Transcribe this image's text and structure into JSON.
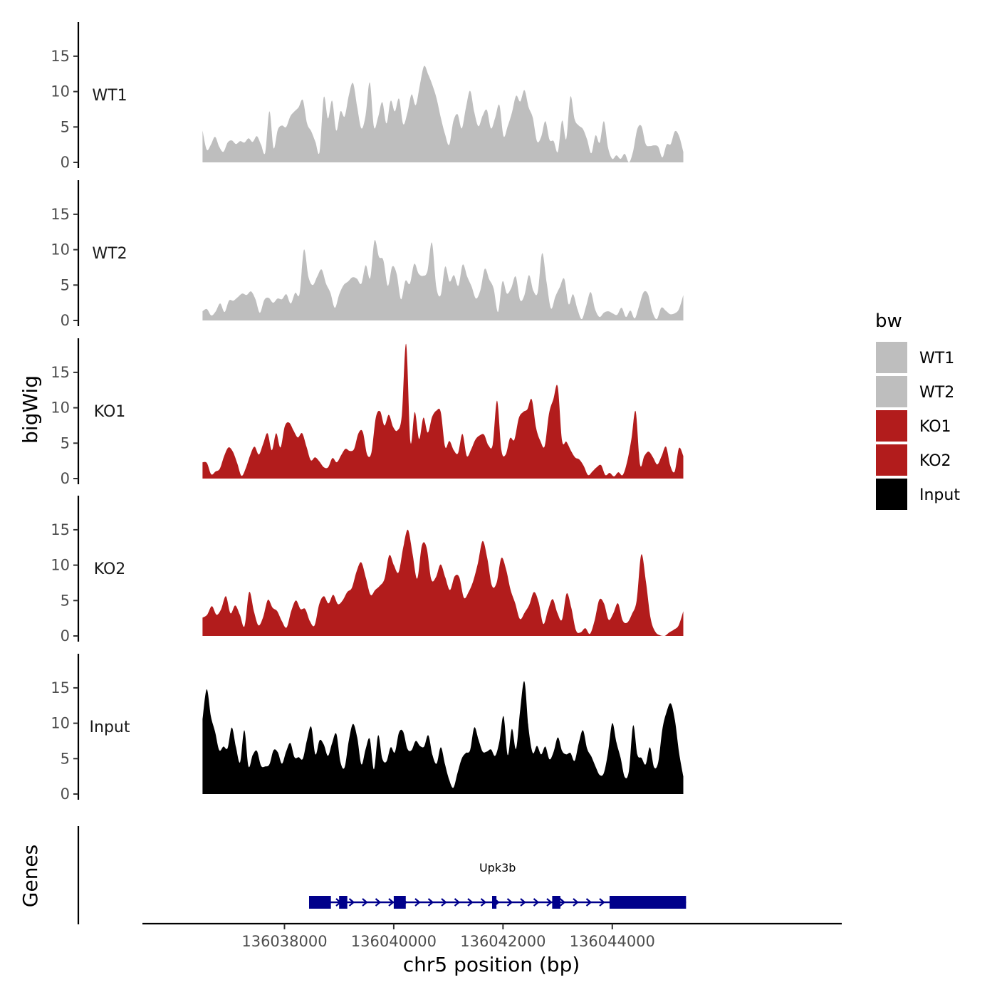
{
  "chart_data": {
    "type": "area",
    "ylabel": "bigWig",
    "genes_label": "Genes",
    "xlabel": "chr5 position (bp)",
    "xlim": [
      136035400,
      136048200
    ],
    "data_range": [
      136036500,
      136045300
    ],
    "ylim": [
      0,
      19.5
    ],
    "yticks": [
      0,
      5,
      10,
      15
    ],
    "xticks": [
      136038000,
      136040000,
      136042000,
      136044000
    ],
    "legend_title": "bw",
    "series": [
      {
        "name": "WT1",
        "color": "#bebebe",
        "values": [
          4.5,
          1.8,
          2.5,
          3.6,
          2.2,
          1.5,
          2.8,
          3.1,
          2.6,
          3.0,
          2.8,
          3.4,
          2.9,
          3.7,
          2.5,
          1.4,
          7.2,
          2.0,
          4.6,
          5.2,
          5.0,
          6.5,
          7.2,
          7.8,
          8.8,
          5.5,
          4.4,
          2.9,
          1.5,
          9.2,
          6.2,
          8.7,
          4.5,
          7.2,
          6.5,
          9.5,
          11.2,
          7.8,
          4.8,
          6.6,
          11.3,
          5.0,
          6.4,
          8.5,
          5.5,
          8.7,
          7.2,
          9.0,
          5.4,
          7.0,
          9.6,
          8.1,
          11.0,
          13.6,
          12.4,
          10.9,
          9.0,
          6.3,
          4.0,
          2.5,
          5.8,
          6.8,
          4.8,
          7.7,
          10.1,
          7.1,
          5.1,
          6.6,
          7.4,
          4.8,
          6.3,
          8.1,
          3.7,
          5.1,
          7.0,
          9.4,
          8.6,
          10.2,
          7.8,
          6.3,
          3.0,
          3.6,
          5.8,
          3.2,
          3.0,
          1.5,
          5.9,
          3.3,
          9.3,
          6.1,
          5.2,
          4.7,
          3.2,
          1.3,
          3.8,
          2.8,
          5.8,
          2.1,
          0.5,
          1.0,
          0.5,
          1.2,
          0.0,
          1.6,
          4.7,
          5.1,
          2.6,
          2.3,
          2.4,
          2.2,
          0.7,
          2.5,
          2.6,
          4.4,
          3.7,
          1.5
        ]
      },
      {
        "name": "WT2",
        "color": "#bebebe",
        "values": [
          1.3,
          1.6,
          0.7,
          1.3,
          2.4,
          1.2,
          2.8,
          2.8,
          3.3,
          3.8,
          3.6,
          4.1,
          3.0,
          1.1,
          2.9,
          3.2,
          2.5,
          3.1,
          3.0,
          3.7,
          2.4,
          3.9,
          3.8,
          10.0,
          6.2,
          5.0,
          6.2,
          7.2,
          5.2,
          3.9,
          1.8,
          3.7,
          5.0,
          5.5,
          6.1,
          5.9,
          5.2,
          7.8,
          6.0,
          11.3,
          9.0,
          8.5,
          4.9,
          7.6,
          6.6,
          3.0,
          5.6,
          5.2,
          8.0,
          6.6,
          6.3,
          7.0,
          11.0,
          4.7,
          3.6,
          7.6,
          5.5,
          6.4,
          4.9,
          7.9,
          6.2,
          4.8,
          3.1,
          4.3,
          7.3,
          5.8,
          4.5,
          1.2,
          5.5,
          3.8,
          4.6,
          6.2,
          2.9,
          3.6,
          6.4,
          4.2,
          4.0,
          9.5,
          5.4,
          1.7,
          3.4,
          4.7,
          5.9,
          2.3,
          3.7,
          1.6,
          0.2,
          2.1,
          4.0,
          1.6,
          0.5,
          1.1,
          1.3,
          1.0,
          0.8,
          1.8,
          0.5,
          1.4,
          0.3,
          2.1,
          4.0,
          3.7,
          1.2,
          0.2,
          1.8,
          1.4,
          0.9,
          1.0,
          1.6,
          3.6
        ]
      },
      {
        "name": "KO1",
        "color": "#b21c1c",
        "values": [
          2.3,
          2.2,
          0.6,
          1.0,
          1.4,
          3.2,
          4.4,
          3.8,
          2.2,
          0.4,
          1.5,
          3.3,
          4.5,
          3.4,
          4.9,
          6.4,
          4.0,
          6.4,
          4.4,
          7.4,
          7.9,
          6.8,
          5.8,
          6.4,
          4.5,
          2.6,
          3.0,
          2.4,
          1.6,
          1.6,
          2.9,
          2.3,
          3.3,
          4.2,
          3.9,
          4.2,
          6.4,
          6.6,
          3.4,
          3.7,
          8.6,
          9.5,
          7.5,
          9.0,
          7.3,
          6.8,
          8.9,
          19.0,
          5.2,
          9.4,
          5.6,
          8.6,
          6.5,
          8.7,
          9.6,
          9.4,
          4.5,
          5.3,
          4.0,
          3.6,
          6.3,
          3.2,
          4.1,
          5.5,
          6.1,
          6.2,
          4.7,
          4.8,
          11.0,
          4.0,
          3.4,
          5.7,
          5.5,
          8.5,
          9.4,
          9.8,
          11.2,
          7.2,
          5.3,
          4.6,
          9.2,
          11.2,
          13.0,
          5.4,
          5.2,
          4.0,
          3.0,
          2.7,
          1.8,
          0.5,
          1.0,
          1.6,
          1.9,
          0.5,
          0.8,
          0.3,
          0.9,
          0.5,
          2.3,
          5.5,
          9.5,
          2.0,
          3.2,
          3.8,
          3.0,
          2.0,
          3.2,
          4.5,
          1.8,
          1.0,
          4.3,
          3.2
        ]
      },
      {
        "name": "KO2",
        "color": "#b21c1c",
        "values": [
          2.6,
          3.0,
          4.2,
          3.0,
          3.8,
          5.6,
          3.2,
          4.3,
          3.0,
          1.4,
          6.2,
          3.5,
          1.5,
          2.7,
          5.1,
          4.0,
          3.5,
          2.1,
          1.2,
          3.5,
          5.0,
          3.8,
          3.8,
          2.1,
          1.5,
          4.5,
          5.6,
          4.6,
          5.8,
          4.5,
          5.0,
          6.2,
          6.8,
          9.1,
          10.4,
          8.2,
          5.8,
          6.5,
          7.1,
          8.1,
          11.4,
          10.0,
          9.0,
          12.5,
          15.0,
          11.6,
          8.1,
          12.8,
          12.5,
          8.0,
          8.3,
          10.1,
          8.3,
          6.5,
          8.4,
          8.3,
          5.4,
          6.2,
          7.8,
          10.3,
          13.4,
          11.0,
          7.1,
          7.5,
          11.0,
          9.5,
          6.5,
          4.6,
          2.4,
          3.3,
          4.4,
          6.2,
          4.8,
          1.7,
          3.6,
          5.2,
          3.3,
          2.3,
          6.0,
          4.0,
          0.8,
          0.5,
          1.1,
          0.3,
          2.2,
          5.1,
          4.6,
          2.3,
          3.2,
          4.6,
          2.2,
          1.9,
          3.1,
          5.0,
          11.5,
          7.6,
          2.5,
          0.6,
          0.1,
          0.0,
          0.5,
          0.9,
          1.5,
          3.5
        ]
      },
      {
        "name": "Input",
        "color": "#000000",
        "values": [
          10.5,
          14.8,
          11.0,
          8.8,
          6.2,
          6.7,
          6.5,
          9.4,
          6.6,
          4.5,
          9.0,
          3.9,
          5.5,
          6.1,
          4.0,
          3.9,
          4.2,
          6.2,
          5.9,
          4.3,
          6.0,
          7.2,
          5.2,
          5.2,
          5.0,
          7.7,
          9.5,
          5.6,
          7.6,
          7.0,
          5.4,
          7.2,
          8.5,
          4.5,
          3.8,
          7.6,
          9.9,
          8.0,
          4.2,
          6.3,
          7.8,
          3.5,
          8.3,
          5.0,
          4.6,
          6.6,
          5.9,
          8.7,
          8.8,
          6.4,
          6.2,
          7.5,
          6.8,
          6.7,
          8.3,
          5.5,
          4.3,
          6.6,
          4.2,
          2.0,
          0.9,
          3.0,
          5.0,
          5.8,
          6.2,
          9.4,
          7.7,
          6.0,
          6.0,
          6.3,
          5.4,
          7.4,
          11.0,
          5.5,
          9.2,
          6.4,
          12.0,
          15.9,
          9.2,
          5.8,
          6.8,
          5.6,
          6.7,
          4.9,
          6.0,
          8.0,
          6.1,
          5.6,
          5.8,
          4.7,
          7.2,
          9.0,
          6.4,
          5.3,
          3.9,
          2.7,
          3.0,
          5.9,
          10.0,
          7.3,
          5.1,
          2.4,
          3.3,
          9.7,
          5.6,
          5.1,
          4.2,
          6.6,
          3.8,
          4.5,
          9.2,
          11.6,
          12.8,
          10.4,
          5.8,
          2.5
        ]
      }
    ],
    "gene_track": {
      "label": "Upk3b",
      "color": "#00008b",
      "start": 136038450,
      "end": 136045350,
      "exons": [
        [
          136038450,
          136038850
        ],
        [
          136039000,
          136039150
        ],
        [
          136040000,
          136040220
        ],
        [
          136041800,
          136041880
        ],
        [
          136042900,
          136043050
        ],
        [
          136043950,
          136045350
        ]
      ]
    }
  }
}
